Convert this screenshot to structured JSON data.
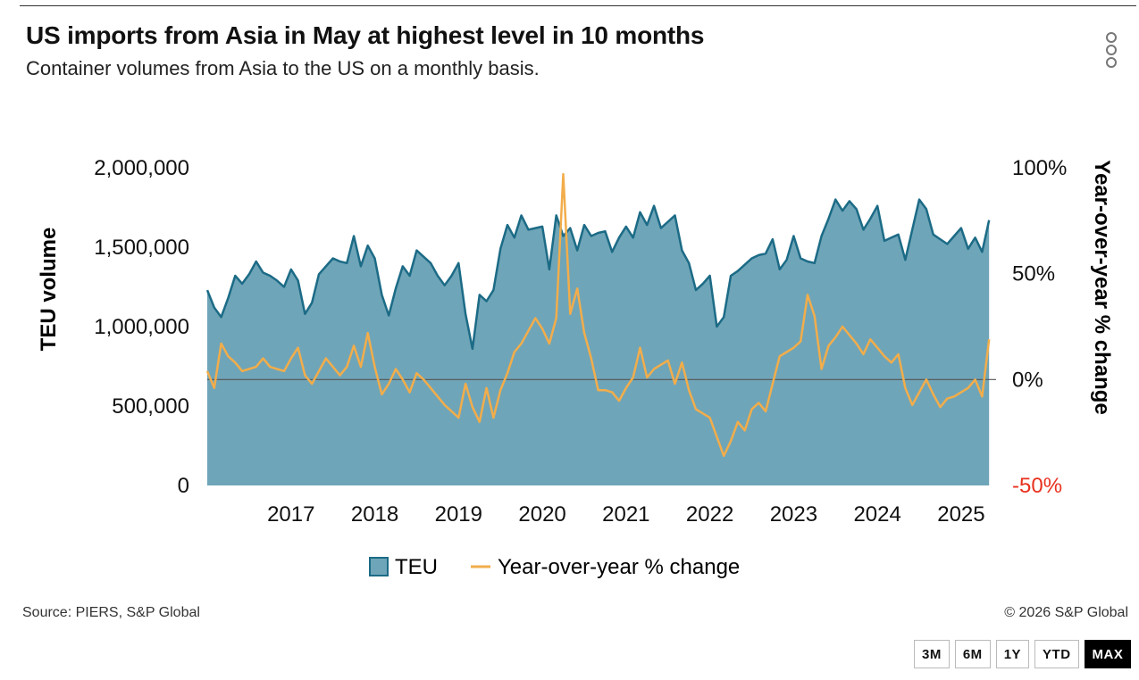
{
  "header": {
    "title": "US imports from Asia in May at highest level in 10 months",
    "subtitle": "Container volumes from Asia to the US on a monthly basis."
  },
  "footer": {
    "source": "Source: PIERS, S&P Global",
    "copyright": "© 2026 S&P Global"
  },
  "range_buttons": [
    {
      "label": "3M",
      "active": false
    },
    {
      "label": "6M",
      "active": false
    },
    {
      "label": "1Y",
      "active": false
    },
    {
      "label": "YTD",
      "active": false
    },
    {
      "label": "MAX",
      "active": true
    }
  ],
  "colors": {
    "teu_fill": "#6fa5b8",
    "teu_line": "#1c6b86",
    "yoy_line": "#f2ad4b",
    "zero_line": "#555555",
    "negative_label": "#e8311f"
  },
  "chart_data": {
    "type": "area",
    "x_start": "2016-07",
    "x_end": "2025-12",
    "xticks": [
      "2017",
      "2018",
      "2019",
      "2020",
      "2021",
      "2022",
      "2023",
      "2024",
      "2025"
    ],
    "ylabel": "TEU volume",
    "ylim": [
      0,
      2000000
    ],
    "yticks": [
      "0",
      "500,000",
      "1,000,000",
      "1,500,000",
      "2,000,000"
    ],
    "y2label": "Year-over-year % change",
    "y2lim": [
      -50,
      100
    ],
    "y2ticks": [
      "-50%",
      "0%",
      "50%",
      "100%"
    ],
    "legend": [
      "TEU",
      "Year-over-year % change"
    ],
    "series": [
      {
        "name": "TEU",
        "axis": "left",
        "points": [
          [
            "2016-07",
            1230000
          ],
          [
            "2016-08",
            1120000
          ],
          [
            "2016-09",
            1060000
          ],
          [
            "2016-10",
            1180000
          ],
          [
            "2016-11",
            1320000
          ],
          [
            "2016-12",
            1270000
          ],
          [
            "2017-01",
            1330000
          ],
          [
            "2017-02",
            1410000
          ],
          [
            "2017-03",
            1340000
          ],
          [
            "2017-04",
            1320000
          ],
          [
            "2017-05",
            1290000
          ],
          [
            "2017-06",
            1250000
          ],
          [
            "2017-07",
            1360000
          ],
          [
            "2017-08",
            1290000
          ],
          [
            "2017-09",
            1080000
          ],
          [
            "2017-10",
            1150000
          ],
          [
            "2017-11",
            1330000
          ],
          [
            "2017-12",
            1380000
          ],
          [
            "2018-01",
            1430000
          ],
          [
            "2018-02",
            1410000
          ],
          [
            "2018-03",
            1400000
          ],
          [
            "2018-04",
            1570000
          ],
          [
            "2018-05",
            1380000
          ],
          [
            "2018-06",
            1510000
          ],
          [
            "2018-07",
            1430000
          ],
          [
            "2018-08",
            1200000
          ],
          [
            "2018-09",
            1070000
          ],
          [
            "2018-10",
            1240000
          ],
          [
            "2018-11",
            1380000
          ],
          [
            "2018-12",
            1320000
          ],
          [
            "2019-01",
            1480000
          ],
          [
            "2019-02",
            1440000
          ],
          [
            "2019-03",
            1400000
          ],
          [
            "2019-04",
            1320000
          ],
          [
            "2019-05",
            1260000
          ],
          [
            "2019-06",
            1320000
          ],
          [
            "2019-07",
            1400000
          ],
          [
            "2019-08",
            1080000
          ],
          [
            "2019-09",
            860000
          ],
          [
            "2019-10",
            1200000
          ],
          [
            "2019-11",
            1160000
          ],
          [
            "2019-12",
            1230000
          ],
          [
            "2020-01",
            1490000
          ],
          [
            "2020-02",
            1640000
          ],
          [
            "2020-03",
            1560000
          ],
          [
            "2020-04",
            1700000
          ],
          [
            "2020-05",
            1610000
          ],
          [
            "2020-06",
            1620000
          ],
          [
            "2020-07",
            1630000
          ],
          [
            "2020-08",
            1360000
          ],
          [
            "2020-09",
            1700000
          ],
          [
            "2020-10",
            1570000
          ],
          [
            "2020-11",
            1620000
          ],
          [
            "2020-12",
            1480000
          ],
          [
            "2021-01",
            1640000
          ],
          [
            "2021-02",
            1570000
          ],
          [
            "2021-03",
            1590000
          ],
          [
            "2021-04",
            1600000
          ],
          [
            "2021-05",
            1470000
          ],
          [
            "2021-06",
            1560000
          ],
          [
            "2021-07",
            1630000
          ],
          [
            "2021-08",
            1560000
          ],
          [
            "2021-09",
            1720000
          ],
          [
            "2021-10",
            1640000
          ],
          [
            "2021-11",
            1760000
          ],
          [
            "2021-12",
            1620000
          ],
          [
            "2022-01",
            1660000
          ],
          [
            "2022-02",
            1700000
          ],
          [
            "2022-03",
            1480000
          ],
          [
            "2022-04",
            1400000
          ],
          [
            "2022-05",
            1230000
          ],
          [
            "2022-06",
            1270000
          ],
          [
            "2022-07",
            1320000
          ],
          [
            "2022-08",
            1000000
          ],
          [
            "2022-09",
            1060000
          ],
          [
            "2022-10",
            1320000
          ],
          [
            "2022-11",
            1350000
          ],
          [
            "2022-12",
            1390000
          ],
          [
            "2023-01",
            1430000
          ],
          [
            "2023-02",
            1450000
          ],
          [
            "2023-03",
            1460000
          ],
          [
            "2023-04",
            1550000
          ],
          [
            "2023-05",
            1360000
          ],
          [
            "2023-06",
            1420000
          ],
          [
            "2023-07",
            1570000
          ],
          [
            "2023-08",
            1430000
          ],
          [
            "2023-09",
            1410000
          ],
          [
            "2023-10",
            1400000
          ],
          [
            "2023-11",
            1570000
          ],
          [
            "2023-12",
            1680000
          ],
          [
            "2024-01",
            1800000
          ],
          [
            "2024-02",
            1730000
          ],
          [
            "2024-03",
            1790000
          ],
          [
            "2024-04",
            1740000
          ],
          [
            "2024-05",
            1610000
          ],
          [
            "2024-06",
            1680000
          ],
          [
            "2024-07",
            1760000
          ],
          [
            "2024-08",
            1540000
          ],
          [
            "2024-09",
            1560000
          ],
          [
            "2024-10",
            1580000
          ],
          [
            "2024-11",
            1420000
          ],
          [
            "2024-12",
            1610000
          ],
          [
            "2025-01",
            1800000
          ],
          [
            "2025-02",
            1740000
          ],
          [
            "2025-03",
            1580000
          ],
          [
            "2025-04",
            1550000
          ],
          [
            "2025-05",
            1520000
          ],
          [
            "2025-06",
            1570000
          ],
          [
            "2025-07",
            1620000
          ],
          [
            "2025-08",
            1490000
          ],
          [
            "2025-09",
            1560000
          ],
          [
            "2025-10",
            1470000
          ],
          [
            "2025-11",
            1670000
          ]
        ]
      },
      {
        "name": "Year-over-year % change",
        "axis": "right",
        "points": [
          [
            "2016-07",
            4
          ],
          [
            "2016-08",
            -4
          ],
          [
            "2016-09",
            17
          ],
          [
            "2016-10",
            11
          ],
          [
            "2016-11",
            8
          ],
          [
            "2016-12",
            4
          ],
          [
            "2017-01",
            5
          ],
          [
            "2017-02",
            6
          ],
          [
            "2017-03",
            10
          ],
          [
            "2017-04",
            6
          ],
          [
            "2017-05",
            5
          ],
          [
            "2017-06",
            4
          ],
          [
            "2017-07",
            10
          ],
          [
            "2017-08",
            15
          ],
          [
            "2017-09",
            2
          ],
          [
            "2017-10",
            -2
          ],
          [
            "2017-11",
            4
          ],
          [
            "2017-12",
            10
          ],
          [
            "2018-01",
            6
          ],
          [
            "2018-02",
            2
          ],
          [
            "2018-03",
            6
          ],
          [
            "2018-04",
            16
          ],
          [
            "2018-05",
            6
          ],
          [
            "2018-06",
            22
          ],
          [
            "2018-07",
            6
          ],
          [
            "2018-08",
            -7
          ],
          [
            "2018-09",
            -2
          ],
          [
            "2018-10",
            5
          ],
          [
            "2018-11",
            0
          ],
          [
            "2018-12",
            -6
          ],
          [
            "2019-01",
            3
          ],
          [
            "2019-02",
            0
          ],
          [
            "2019-03",
            -4
          ],
          [
            "2019-04",
            -8
          ],
          [
            "2019-05",
            -12
          ],
          [
            "2019-06",
            -15
          ],
          [
            "2019-07",
            -18
          ],
          [
            "2019-08",
            -2
          ],
          [
            "2019-09",
            -13
          ],
          [
            "2019-10",
            -20
          ],
          [
            "2019-11",
            -4
          ],
          [
            "2019-12",
            -18
          ],
          [
            "2020-01",
            -5
          ],
          [
            "2020-02",
            3
          ],
          [
            "2020-03",
            13
          ],
          [
            "2020-04",
            17
          ],
          [
            "2020-05",
            23
          ],
          [
            "2020-06",
            29
          ],
          [
            "2020-07",
            24
          ],
          [
            "2020-08",
            17
          ],
          [
            "2020-09",
            29
          ],
          [
            "2020-10",
            97
          ],
          [
            "2020-11",
            31
          ],
          [
            "2020-12",
            43
          ],
          [
            "2021-01",
            22
          ],
          [
            "2021-02",
            10
          ],
          [
            "2021-03",
            -5
          ],
          [
            "2021-04",
            -5
          ],
          [
            "2021-05",
            -6
          ],
          [
            "2021-06",
            -10
          ],
          [
            "2021-07",
            -4
          ],
          [
            "2021-08",
            1
          ],
          [
            "2021-09",
            15
          ],
          [
            "2021-10",
            1
          ],
          [
            "2021-11",
            5
          ],
          [
            "2021-12",
            7
          ],
          [
            "2022-01",
            9
          ],
          [
            "2022-02",
            -2
          ],
          [
            "2022-03",
            8
          ],
          [
            "2022-04",
            -5
          ],
          [
            "2022-05",
            -14
          ],
          [
            "2022-06",
            -16
          ],
          [
            "2022-07",
            -18
          ],
          [
            "2022-08",
            -27
          ],
          [
            "2022-09",
            -36
          ],
          [
            "2022-10",
            -29
          ],
          [
            "2022-11",
            -20
          ],
          [
            "2022-12",
            -24
          ],
          [
            "2023-01",
            -14
          ],
          [
            "2023-02",
            -11
          ],
          [
            "2023-03",
            -15
          ],
          [
            "2023-04",
            -2
          ],
          [
            "2023-05",
            11
          ],
          [
            "2023-06",
            13
          ],
          [
            "2023-07",
            15
          ],
          [
            "2023-08",
            18
          ],
          [
            "2023-09",
            40
          ],
          [
            "2023-10",
            30
          ],
          [
            "2023-11",
            5
          ],
          [
            "2023-12",
            16
          ],
          [
            "2024-01",
            20
          ],
          [
            "2024-02",
            25
          ],
          [
            "2024-03",
            21
          ],
          [
            "2024-04",
            17
          ],
          [
            "2024-05",
            12
          ],
          [
            "2024-06",
            19
          ],
          [
            "2024-07",
            15
          ],
          [
            "2024-08",
            11
          ],
          [
            "2024-09",
            8
          ],
          [
            "2024-10",
            12
          ],
          [
            "2024-11",
            -4
          ],
          [
            "2024-12",
            -12
          ],
          [
            "2025-01",
            -6
          ],
          [
            "2025-02",
            0
          ],
          [
            "2025-03",
            -7
          ],
          [
            "2025-04",
            -13
          ],
          [
            "2025-05",
            -9
          ],
          [
            "2025-06",
            -8
          ],
          [
            "2025-07",
            -6
          ],
          [
            "2025-08",
            -4
          ],
          [
            "2025-09",
            0
          ],
          [
            "2025-10",
            -8
          ],
          [
            "2025-11",
            19
          ]
        ]
      }
    ]
  }
}
